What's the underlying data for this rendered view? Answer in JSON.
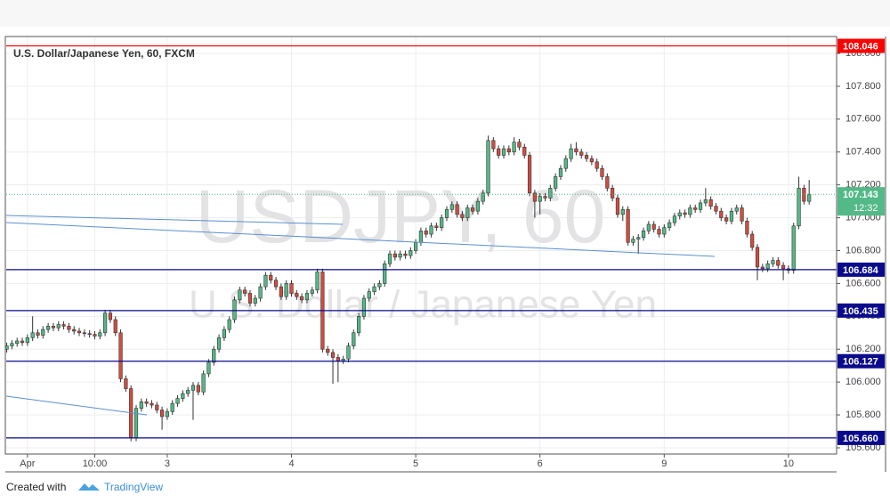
{
  "chart_data": {
    "type": "candlestick",
    "title": "U.S. Dollar/Japanese Yen, 60, FXCM",
    "watermark": "USDJPY, 60",
    "watermark_subtitle": "U.S. Dollar / Japanese Yen",
    "up_color": "#53b987",
    "down_color": "#d34c3f",
    "open": [
      106.2,
      106.22,
      106.235,
      106.25,
      106.24,
      106.27,
      106.3,
      106.285,
      106.32,
      106.34,
      106.33,
      106.35,
      106.34,
      106.32,
      106.31,
      106.3,
      106.295,
      106.29,
      106.28,
      106.3,
      106.42,
      106.38,
      106.3,
      106.02,
      105.96,
      105.66,
      105.84,
      105.88,
      105.87,
      105.86,
      105.83,
      105.79,
      105.82,
      105.87,
      105.9,
      105.93,
      105.95,
      105.98,
      105.94,
      106.05,
      106.12,
      106.2,
      106.27,
      106.32,
      106.38,
      106.5,
      106.56,
      106.54,
      106.48,
      106.51,
      106.58,
      106.65,
      106.62,
      106.58,
      106.52,
      106.6,
      106.54,
      106.52,
      106.5,
      106.54,
      106.56,
      106.67,
      106.2,
      106.18,
      106.15,
      106.13,
      106.14,
      106.22,
      106.3,
      106.4,
      106.51,
      106.55,
      106.58,
      106.6,
      106.72,
      106.78,
      106.76,
      106.78,
      106.77,
      106.8,
      106.85,
      106.92,
      106.9,
      106.95,
      106.94,
      107,
      107.05,
      107.08,
      107.02,
      107,
      107.06,
      107.04,
      107.1,
      107.15,
      107.47,
      107.42,
      107.38,
      107.42,
      107.4,
      107.46,
      107.43,
      107.38,
      107.15,
      107.1,
      107.13,
      107.12,
      107.18,
      107.25,
      107.3,
      107.36,
      107.42,
      107.4,
      107.38,
      107.36,
      107.34,
      107.3,
      107.25,
      107.18,
      107.12,
      107.02,
      107.05,
      106.85,
      106.87,
      106.88,
      106.92,
      106.96,
      106.93,
      106.9,
      106.94,
      106.97,
      107.01,
      107.03,
      107.02,
      107.06,
      107.05,
      107.09,
      107.11,
      107.07,
      107.04,
      107,
      106.98,
      107.04,
      107.06,
      106.98,
      106.9,
      106.82,
      106.7,
      106.69,
      106.72,
      106.74,
      106.71,
      106.69,
      106.68,
      106.95,
      107.18,
      107.1
    ],
    "high": [
      106.24,
      106.255,
      106.27,
      106.27,
      106.29,
      106.4,
      106.32,
      106.34,
      106.36,
      106.36,
      106.37,
      106.37,
      106.36,
      106.34,
      106.33,
      106.32,
      106.315,
      106.31,
      106.32,
      106.44,
      106.44,
      106.4,
      106.32,
      106.04,
      105.98,
      105.86,
      105.9,
      105.9,
      105.89,
      105.88,
      105.85,
      105.84,
      105.89,
      105.92,
      105.95,
      105.97,
      106,
      106,
      106.07,
      106.14,
      106.22,
      106.29,
      106.34,
      106.4,
      106.52,
      106.58,
      106.58,
      106.56,
      106.53,
      106.6,
      106.67,
      106.67,
      106.64,
      106.6,
      106.62,
      106.62,
      106.56,
      106.54,
      106.56,
      106.58,
      106.69,
      106.69,
      106.22,
      106.2,
      106.17,
      106.16,
      106.24,
      106.32,
      106.42,
      106.53,
      106.57,
      106.6,
      106.62,
      106.74,
      106.8,
      106.8,
      106.8,
      106.8,
      106.82,
      106.87,
      106.94,
      106.94,
      106.97,
      106.97,
      107.02,
      107.07,
      107.1,
      107.1,
      107.04,
      107.08,
      107.08,
      107.12,
      107.17,
      107.5,
      107.49,
      107.44,
      107.44,
      107.44,
      107.49,
      107.48,
      107.45,
      107.4,
      107.17,
      107.15,
      107.15,
      107.2,
      107.27,
      107.32,
      107.38,
      107.45,
      107.46,
      107.42,
      107.4,
      107.38,
      107.36,
      107.32,
      107.27,
      107.2,
      107.14,
      107.07,
      107.07,
      106.89,
      106.9,
      106.94,
      106.98,
      106.98,
      106.95,
      106.96,
      106.99,
      107.03,
      107.05,
      107.05,
      107.08,
      107.08,
      107.11,
      107.18,
      107.13,
      107.09,
      107.06,
      107.02,
      107.06,
      107.08,
      107.08,
      107,
      106.92,
      106.84,
      106.72,
      106.74,
      106.76,
      106.76,
      106.73,
      106.71,
      106.97,
      107.25,
      107.2,
      107.23
    ],
    "low": [
      106.18,
      106.2,
      106.215,
      106.22,
      106.22,
      106.25,
      106.265,
      106.265,
      106.3,
      106.31,
      106.31,
      106.32,
      106.3,
      106.29,
      106.28,
      106.275,
      106.27,
      106.26,
      106.26,
      106.28,
      106.36,
      106.28,
      106,
      105.94,
      105.64,
      105.64,
      105.82,
      105.85,
      105.84,
      105.81,
      105.71,
      105.77,
      105.8,
      105.85,
      105.88,
      105.91,
      105.77,
      105.92,
      105.92,
      106.03,
      106.1,
      106.18,
      106.25,
      106.3,
      106.36,
      106.48,
      106.52,
      106.46,
      106.46,
      106.49,
      106.56,
      106.6,
      106.56,
      106.5,
      106.5,
      106.52,
      106.5,
      106.48,
      106.48,
      106.52,
      106.54,
      106.18,
      106.16,
      105.99,
      106,
      106.11,
      106.12,
      106.2,
      106.28,
      106.38,
      106.49,
      106.53,
      106.56,
      106.58,
      106.7,
      106.74,
      106.74,
      106.75,
      106.75,
      106.78,
      106.83,
      106.88,
      106.88,
      106.92,
      106.92,
      106.98,
      107.03,
      107,
      106.98,
      106.98,
      107.02,
      107.02,
      107.08,
      107.13,
      107.4,
      107.36,
      107.36,
      107.38,
      107.38,
      107.41,
      107.36,
      107.13,
      107,
      107.02,
      107.1,
      107.1,
      107.16,
      107.23,
      107.28,
      107.34,
      107.38,
      107.36,
      107.34,
      107.32,
      107.28,
      107.23,
      107.16,
      107.1,
      107,
      106.98,
      106.83,
      106.83,
      106.78,
      106.86,
      106.9,
      106.91,
      106.88,
      106.88,
      106.92,
      106.95,
      106.99,
      107,
      107,
      107.03,
      107.03,
      107.07,
      107.05,
      107.02,
      106.98,
      106.96,
      106.96,
      107.02,
      106.96,
      106.88,
      106.8,
      106.62,
      106.67,
      106.67,
      106.7,
      106.69,
      106.62,
      106.66,
      106.66,
      106.93,
      107.08,
      107.08
    ],
    "close": [
      106.22,
      106.235,
      106.25,
      106.24,
      106.27,
      106.3,
      106.285,
      106.32,
      106.34,
      106.33,
      106.35,
      106.34,
      106.32,
      106.31,
      106.3,
      106.295,
      106.29,
      106.28,
      106.3,
      106.42,
      106.38,
      106.3,
      106.02,
      105.96,
      105.66,
      105.84,
      105.88,
      105.87,
      105.86,
      105.83,
      105.79,
      105.82,
      105.87,
      105.9,
      105.93,
      105.95,
      105.98,
      105.94,
      106.05,
      106.12,
      106.2,
      106.27,
      106.32,
      106.38,
      106.5,
      106.56,
      106.54,
      106.48,
      106.51,
      106.58,
      106.65,
      106.62,
      106.58,
      106.52,
      106.6,
      106.54,
      106.52,
      106.5,
      106.54,
      106.56,
      106.67,
      106.2,
      106.18,
      106.15,
      106.13,
      106.14,
      106.22,
      106.3,
      106.4,
      106.51,
      106.55,
      106.58,
      106.6,
      106.72,
      106.78,
      106.76,
      106.78,
      106.77,
      106.8,
      106.85,
      106.92,
      106.9,
      106.95,
      106.94,
      107,
      107.05,
      107.08,
      107.02,
      107,
      107.06,
      107.04,
      107.1,
      107.15,
      107.47,
      107.42,
      107.38,
      107.42,
      107.4,
      107.46,
      107.43,
      107.38,
      107.15,
      107.1,
      107.13,
      107.12,
      107.18,
      107.25,
      107.3,
      107.36,
      107.42,
      107.4,
      107.38,
      107.36,
      107.34,
      107.3,
      107.25,
      107.18,
      107.12,
      107.02,
      107.05,
      106.85,
      106.87,
      106.88,
      106.92,
      106.96,
      106.93,
      106.9,
      106.94,
      106.97,
      107.01,
      107.03,
      107.02,
      107.06,
      107.05,
      107.09,
      107.11,
      107.07,
      107.04,
      107,
      106.98,
      107.04,
      107.06,
      106.98,
      106.9,
      106.82,
      106.7,
      106.69,
      106.72,
      106.74,
      106.71,
      106.69,
      106.68,
      106.95,
      107.18,
      107.1,
      107.143
    ],
    "countdown": "12:32",
    "levels": [
      {
        "value": 108.046,
        "label": "108.046",
        "color": "#ff0000"
      },
      {
        "value": 106.684,
        "label": "106.684",
        "color": "#0a0a8c"
      },
      {
        "value": 106.435,
        "label": "106.435",
        "color": "#0a0a8c"
      },
      {
        "value": 106.127,
        "label": "106.127",
        "color": "#0a0a8c"
      },
      {
        "value": 105.66,
        "label": "105.660",
        "color": "#0a0a8c"
      }
    ],
    "last_price_color": "#53b987",
    "xlim": [
      -0.1,
      160.3
    ],
    "xticks": [
      {
        "value": 4,
        "label": "Apr"
      },
      {
        "value": 17,
        "label": "10:00"
      },
      {
        "value": 31,
        "label": "3"
      },
      {
        "value": 55,
        "label": "4"
      },
      {
        "value": 79,
        "label": "5"
      },
      {
        "value": 103,
        "label": "6"
      },
      {
        "value": 127,
        "label": "9"
      },
      {
        "value": 151,
        "label": "10"
      }
    ],
    "ylim": [
      105.562,
      108.103
    ],
    "yticks": [
      {
        "value": 105.6,
        "label": "105.600"
      },
      {
        "value": 105.8,
        "label": "105.800"
      },
      {
        "value": 106.0,
        "label": "106.000"
      },
      {
        "value": 106.2,
        "label": "106.200"
      },
      {
        "value": 106.4,
        "label": "106.400"
      },
      {
        "value": 106.6,
        "label": "106.600"
      },
      {
        "value": 106.8,
        "label": "106.800"
      },
      {
        "value": 107.0,
        "label": "107.000"
      },
      {
        "value": 107.2,
        "label": "107.200"
      },
      {
        "value": 107.4,
        "label": "107.400"
      },
      {
        "value": 107.6,
        "label": "107.600"
      },
      {
        "value": 107.8,
        "label": "107.800"
      },
      {
        "value": 108.0,
        "label": "108.000"
      }
    ],
    "grid": true
  },
  "footer": {
    "prefix": "Created with",
    "brand": "TradingView"
  }
}
